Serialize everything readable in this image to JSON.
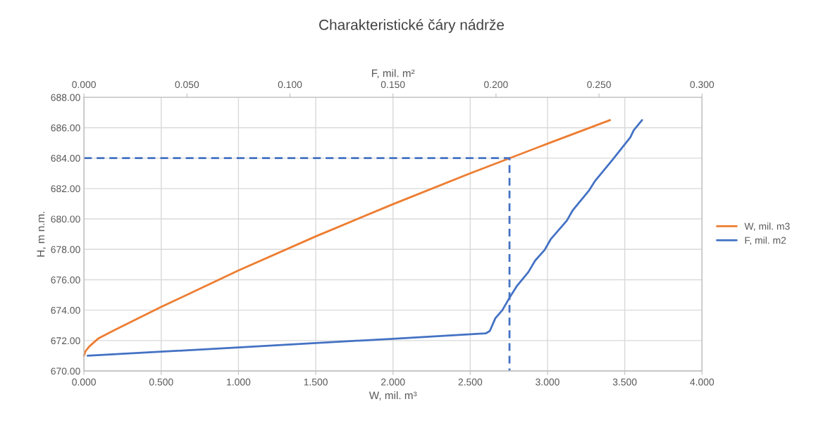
{
  "chart_data": {
    "type": "line",
    "title": "Charakteristické čáry nádrže",
    "xlabel": "W, mil. m³",
    "x2label": "F, mil. m²",
    "ylabel": "H, m n.m.",
    "xlim": [
      0,
      4
    ],
    "xticks": [
      {
        "value": 0,
        "label": "0.000"
      },
      {
        "value": 0.5,
        "label": "0.500"
      },
      {
        "value": 1,
        "label": "1.000"
      },
      {
        "value": 1.5,
        "label": "1.500"
      },
      {
        "value": 2,
        "label": "2.000"
      },
      {
        "value": 2.5,
        "label": "2.500"
      },
      {
        "value": 3,
        "label": "3.000"
      },
      {
        "value": 3.5,
        "label": "3.500"
      },
      {
        "value": 4,
        "label": "4.000"
      }
    ],
    "x2lim": [
      0,
      0.3
    ],
    "x2ticks": [
      {
        "value": 0,
        "label": "0.000"
      },
      {
        "value": 0.05,
        "label": "0.050"
      },
      {
        "value": 0.1,
        "label": "0.100"
      },
      {
        "value": 0.15,
        "label": "0.150"
      },
      {
        "value": 0.2,
        "label": "0.200"
      },
      {
        "value": 0.25,
        "label": "0.250"
      },
      {
        "value": 0.3,
        "label": "0.300"
      }
    ],
    "ylim": [
      670,
      688
    ],
    "yticks": [
      {
        "value": 670,
        "label": "670.00"
      },
      {
        "value": 672,
        "label": "672.00"
      },
      {
        "value": 674,
        "label": "674.00"
      },
      {
        "value": 676,
        "label": "676.00"
      },
      {
        "value": 678,
        "label": "678.00"
      },
      {
        "value": 680,
        "label": "680.00"
      },
      {
        "value": 682,
        "label": "682.00"
      },
      {
        "value": 684,
        "label": "684.00"
      },
      {
        "value": 686,
        "label": "686.00"
      },
      {
        "value": 688,
        "label": "688.00"
      }
    ],
    "grid": true,
    "legend": "right",
    "marker": "none",
    "series": [
      {
        "name": "W, mil. m3",
        "color": "#ed7d31",
        "line_style": "solid",
        "x": [
          0,
          0.01,
          0.035,
          0.096,
          0.2,
          0.498,
          1.0,
          1.5,
          2.0,
          2.5,
          3.0,
          3.405
        ],
        "values": [
          671.0,
          671.3,
          671.62,
          672.16,
          672.7,
          674.2,
          676.61,
          678.85,
          680.97,
          683.0,
          684.95,
          686.5
        ]
      },
      {
        "name": "F, mil. m2",
        "color": "#4472c4",
        "line_style": "solid",
        "axis": "x2",
        "x": [
          0.0018,
          0.075,
          0.15,
          0.195,
          0.197,
          0.1997,
          0.2031,
          0.2065,
          0.21,
          0.2157,
          0.219,
          0.2236,
          0.2265,
          0.2344,
          0.2373,
          0.2453,
          0.2481,
          0.2566,
          0.2652,
          0.2669,
          0.2709
        ],
        "values": [
          671.0,
          671.55,
          672.12,
          672.47,
          672.63,
          673.47,
          674.0,
          674.8,
          675.56,
          676.5,
          677.26,
          677.96,
          678.65,
          679.89,
          680.58,
          681.9,
          682.5,
          683.9,
          685.37,
          685.84,
          686.5
        ]
      },
      {
        "color": "#4472c4",
        "line_style": "dashed",
        "x": [
          0,
          2.754,
          2.754
        ],
        "values": [
          684,
          684,
          670
        ]
      }
    ]
  }
}
